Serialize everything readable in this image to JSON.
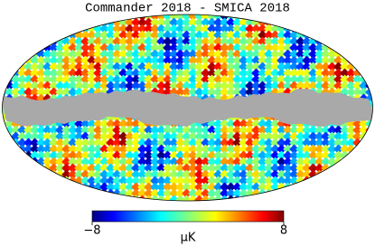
{
  "title": "Commander 2018 - SMICA 2018",
  "colorbar": {
    "range": [
      {
        "value": -8,
        "label": "−8"
      },
      8
    ],
    "ticks": [
      {
        "value": -8,
        "label": "−8"
      },
      8
    ],
    "label": "μK"
  }
}
